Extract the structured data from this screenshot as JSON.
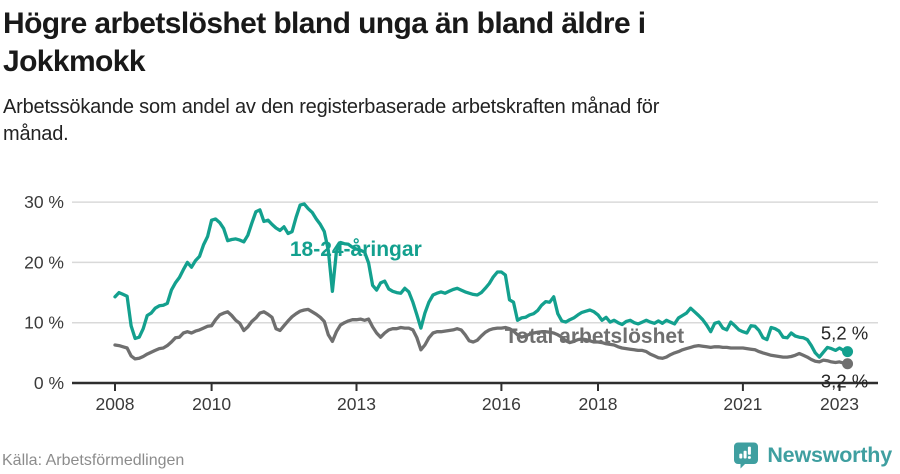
{
  "header": {
    "title": "Högre arbetslöshet bland unga än bland äldre i Jokkmokk",
    "title_lines": [
      "Högre arbetslöshet bland unga än bland äldre i",
      "Jokkmokk"
    ],
    "subtitle": "Arbetssökande som andel av den registerbaserade arbetskraften månad för månad.",
    "subtitle_lines": [
      "Arbetssökande som andel av den registerbaserade arbetskraften månad för",
      "månad."
    ]
  },
  "footer": {
    "source": "Källa: Arbetsförmedlingen",
    "brand": "Newsworthy",
    "brand_icon": "newsworthy-speech-bubble-bar-chart-icon"
  },
  "colors": {
    "youth_line": "#13a08e",
    "total_line": "#6f6f6f",
    "grid": "#d9d9d9",
    "axis": "#2e2e2e",
    "tick_text": "#3a3a3a",
    "title_text": "#191919",
    "muted_text": "#8c8c8c",
    "brand_teal": "#3f9fa0",
    "background": "#ffffff"
  },
  "chart_data": {
    "type": "line",
    "title": "Högre arbetslöshet bland unga än bland äldre i Jokkmokk",
    "subtitle": "Arbetssökande som andel av den registerbaserade arbetskraften månad för månad.",
    "x_start_year": 2008,
    "points_per_year": 12,
    "x_ticks": [
      {
        "label": "2008",
        "year": 2008
      },
      {
        "label": "2010",
        "year": 2010
      },
      {
        "label": "2013",
        "year": 2013
      },
      {
        "label": "2016",
        "year": 2016
      },
      {
        "label": "2018",
        "year": 2018
      },
      {
        "label": "2021",
        "year": 2021
      },
      {
        "label": "2023",
        "year": 2023
      }
    ],
    "y_ticks": [
      0,
      10,
      20,
      30
    ],
    "y_tick_suffix": " %",
    "ylim": [
      0,
      33
    ],
    "grid": "horizontal",
    "legend_position": "inline-annotations",
    "series": [
      {
        "name": "18-24-åringar",
        "color": "#13a08e",
        "end_label": "5,2 %",
        "end_value": 5.2,
        "values": [
          14.3,
          15.0,
          14.7,
          14.4,
          9.5,
          7.4,
          7.6,
          9.0,
          11.2,
          11.6,
          12.4,
          12.8,
          12.9,
          13.2,
          15.4,
          16.6,
          17.5,
          18.8,
          20.0,
          19.2,
          20.3,
          21.0,
          22.9,
          24.3,
          27.0,
          27.2,
          26.6,
          25.6,
          23.6,
          23.8,
          23.9,
          23.7,
          23.4,
          24.5,
          26.5,
          28.4,
          28.7,
          26.8,
          27.0,
          26.3,
          25.7,
          25.3,
          25.9,
          24.8,
          25.1,
          27.5,
          29.5,
          29.7,
          28.9,
          28.3,
          27.2,
          26.3,
          25.1,
          22.0,
          15.2,
          21.8,
          23.3,
          23.1,
          23.0,
          22.5,
          22.2,
          22.0,
          21.7,
          19.9,
          16.2,
          15.4,
          16.6,
          16.9,
          15.6,
          15.2,
          15.0,
          14.9,
          15.7,
          15.1,
          13.4,
          11.3,
          9.1,
          11.6,
          13.4,
          14.6,
          14.9,
          15.1,
          14.9,
          15.2,
          15.5,
          15.7,
          15.4,
          15.1,
          14.9,
          14.7,
          14.6,
          15.0,
          15.7,
          16.5,
          17.6,
          18.4,
          18.4,
          17.9,
          13.8,
          13.4,
          10.4,
          10.8,
          10.9,
          11.3,
          11.5,
          12.0,
          12.9,
          13.5,
          13.4,
          14.3,
          11.5,
          10.3,
          10.1,
          10.5,
          10.8,
          11.3,
          11.7,
          11.9,
          12.1,
          11.8,
          11.3,
          10.4,
          10.9,
          10.1,
          10.4,
          10.0,
          9.7,
          10.2,
          10.4,
          10.0,
          9.8,
          10.1,
          10.4,
          10.1,
          9.9,
          10.3,
          9.9,
          10.4,
          10.1,
          9.8,
          10.8,
          11.2,
          11.6,
          12.4,
          11.8,
          11.2,
          10.5,
          9.6,
          8.5,
          9.9,
          10.1,
          9.1,
          8.8,
          10.1,
          9.5,
          8.8,
          8.5,
          8.3,
          9.5,
          9.4,
          8.7,
          7.5,
          7.2,
          9.2,
          9.0,
          8.6,
          7.6,
          7.5,
          8.3,
          7.8,
          7.6,
          7.5,
          7.2,
          6.2,
          5.0,
          4.3,
          5.1,
          5.9,
          5.7,
          5.4,
          5.8,
          5.4,
          5.2
        ]
      },
      {
        "name": "Total arbetslöshet",
        "color": "#6f6f6f",
        "end_label": "3,2 %",
        "end_value": 3.2,
        "values": [
          6.3,
          6.2,
          6.0,
          5.8,
          4.5,
          4.0,
          4.1,
          4.4,
          4.8,
          5.1,
          5.4,
          5.7,
          5.8,
          6.2,
          6.8,
          7.5,
          7.6,
          8.3,
          8.5,
          8.3,
          8.6,
          8.8,
          9.1,
          9.4,
          9.5,
          10.5,
          11.3,
          11.6,
          11.8,
          11.2,
          10.4,
          9.9,
          8.7,
          9.3,
          10.2,
          10.8,
          11.6,
          11.8,
          11.4,
          10.9,
          9.0,
          8.7,
          9.5,
          10.3,
          11.0,
          11.5,
          11.9,
          12.1,
          12.2,
          11.8,
          11.4,
          10.9,
          10.2,
          8.0,
          6.9,
          8.5,
          9.6,
          10.0,
          10.3,
          10.5,
          10.5,
          10.6,
          10.4,
          10.6,
          9.3,
          8.3,
          7.6,
          8.3,
          8.8,
          9.0,
          9.0,
          9.2,
          9.1,
          9.1,
          8.8,
          7.5,
          5.5,
          6.3,
          7.5,
          8.3,
          8.5,
          8.5,
          8.6,
          8.7,
          8.8,
          9.0,
          8.8,
          8.0,
          7.0,
          6.8,
          7.1,
          7.8,
          8.4,
          8.8,
          9.0,
          9.1,
          9.1,
          9.2,
          9.0,
          8.6,
          8.0,
          7.6,
          7.8,
          8.1,
          8.3,
          8.4,
          8.5,
          8.5,
          8.4,
          8.3,
          8.0,
          7.6,
          7.0,
          6.7,
          6.9,
          7.2,
          7.3,
          7.2,
          7.0,
          6.8,
          6.8,
          6.7,
          6.5,
          6.4,
          6.3,
          6.0,
          5.8,
          5.7,
          5.6,
          5.5,
          5.4,
          5.4,
          5.2,
          4.8,
          4.5,
          4.2,
          4.1,
          4.3,
          4.7,
          5.0,
          5.2,
          5.5,
          5.7,
          5.9,
          6.1,
          6.2,
          6.1,
          6.0,
          5.9,
          6.0,
          6.0,
          5.9,
          5.9,
          5.8,
          5.8,
          5.8,
          5.8,
          5.7,
          5.6,
          5.5,
          5.2,
          5.0,
          4.8,
          4.6,
          4.5,
          4.4,
          4.3,
          4.3,
          4.4,
          4.6,
          4.9,
          4.6,
          4.3,
          3.9,
          3.6,
          3.5,
          3.8,
          3.7,
          3.5,
          3.4,
          3.5,
          3.3,
          3.2
        ]
      }
    ],
    "annotations": [
      {
        "text": "18-24-åringar",
        "series": 0,
        "x": 2011.62,
        "y": 21.1
      },
      {
        "text": "Total arbetslöshet",
        "series": 1,
        "x": 2016.07,
        "y": 6.6
      }
    ]
  }
}
